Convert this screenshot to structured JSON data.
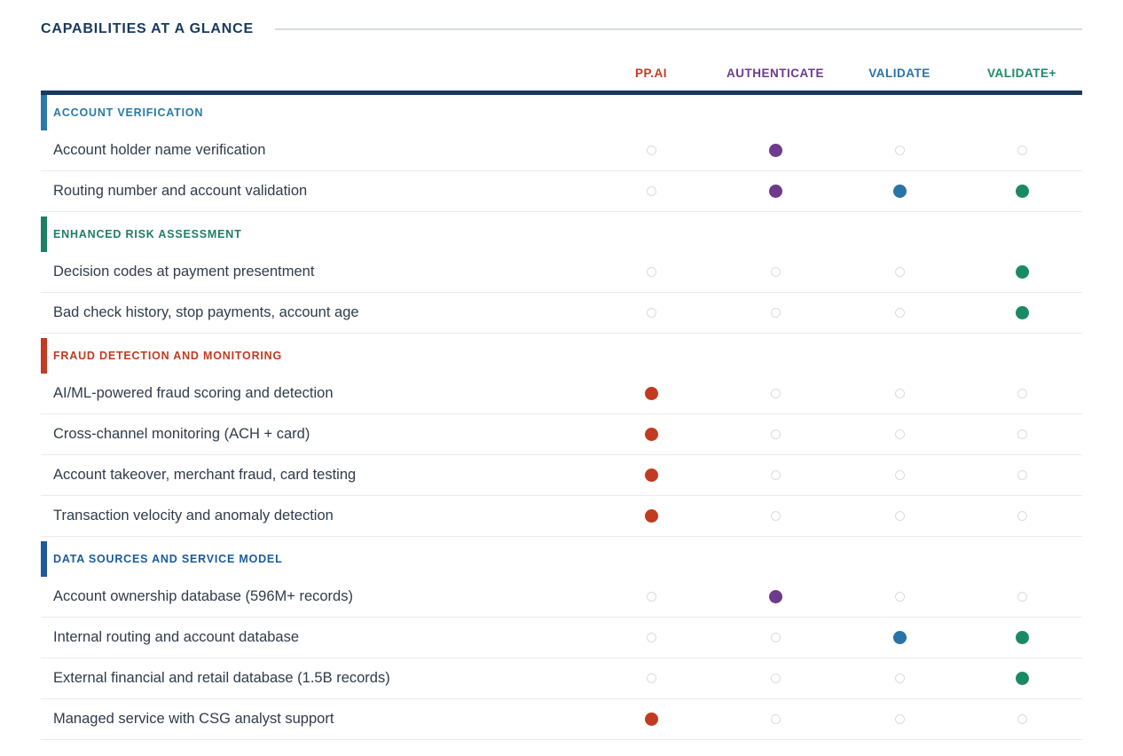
{
  "page": {
    "title": "CAPABILITIES AT A GLANCE"
  },
  "colors": {
    "title_navy": "#17395e",
    "header_rule": "#17395e",
    "title_rule_gray": "#d8dbde",
    "row_text": "#2e3c4b",
    "row_divider": "#e9ebee",
    "empty_dot_border": "#d9dcdf"
  },
  "chart_data": {
    "type": "table",
    "title": "CAPABILITIES AT A GLANCE",
    "legend_note": "filled dot = capability present in that product column; hollow dot = absent",
    "columns": [
      {
        "id": "ppai",
        "label": "PP.AI",
        "color": "#c23a20"
      },
      {
        "id": "authenticate",
        "label": "AUTHENTICATE",
        "color": "#6f3a8d"
      },
      {
        "id": "validate",
        "label": "VALIDATE",
        "color": "#2874a6"
      },
      {
        "id": "validate-plus",
        "label": "VALIDATE+",
        "color": "#1b8a63"
      }
    ],
    "sections": [
      {
        "id": "account-verification",
        "label": "ACCOUNT VERIFICATION",
        "color": "#2a79a8",
        "rows": [
          {
            "label": "Account holder name verification",
            "dots": [
              false,
              true,
              false,
              false
            ]
          },
          {
            "label": "Routing number and account validation",
            "dots": [
              false,
              true,
              true,
              true
            ]
          }
        ]
      },
      {
        "id": "enhanced-risk-assessment",
        "label": "ENHANCED RISK ASSESSMENT",
        "color": "#1d7f63",
        "rows": [
          {
            "label": "Decision codes at payment presentment",
            "dots": [
              false,
              false,
              false,
              true
            ]
          },
          {
            "label": "Bad check history, stop payments, account age",
            "dots": [
              false,
              false,
              false,
              true
            ]
          }
        ]
      },
      {
        "id": "fraud-detection-and-monitoring",
        "label": "FRAUD DETECTION AND MONITORING",
        "color": "#c23a20",
        "rows": [
          {
            "label": "AI/ML-powered fraud scoring and detection",
            "dots": [
              true,
              false,
              false,
              false
            ]
          },
          {
            "label": "Cross-channel monitoring (ACH + card)",
            "dots": [
              true,
              false,
              false,
              false
            ]
          },
          {
            "label": "Account takeover, merchant fraud, card testing",
            "dots": [
              true,
              false,
              false,
              false
            ]
          },
          {
            "label": "Transaction velocity and anomaly detection",
            "dots": [
              true,
              false,
              false,
              false
            ]
          }
        ]
      },
      {
        "id": "data-sources-and-service-model",
        "label": "DATA SOURCES AND SERVICE MODEL",
        "color": "#1c5a9c",
        "rows": [
          {
            "label": "Account ownership database (596M+ records)",
            "dots": [
              false,
              true,
              false,
              false
            ]
          },
          {
            "label": "Internal routing and account database",
            "dots": [
              false,
              false,
              true,
              true
            ]
          },
          {
            "label": "External financial and retail database (1.5B records)",
            "dots": [
              false,
              false,
              false,
              true
            ]
          },
          {
            "label": "Managed service with CSG analyst support",
            "dots": [
              true,
              false,
              false,
              false
            ]
          }
        ]
      }
    ]
  }
}
